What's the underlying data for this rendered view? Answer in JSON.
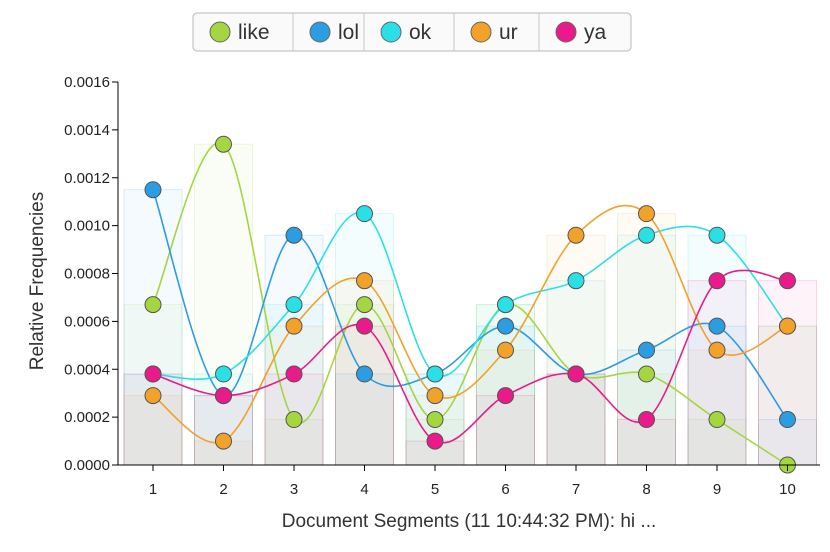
{
  "chart_data": {
    "type": "line",
    "xlabel": "Document Segments (11 10:44:32 PM): hi ...",
    "ylabel": "Relative Frequencies",
    "x": [
      1,
      2,
      3,
      4,
      5,
      6,
      7,
      8,
      9,
      10
    ],
    "ylim": [
      0,
      0.0016
    ],
    "y_ticks": [
      "0.0000",
      "0.0002",
      "0.0004",
      "0.0006",
      "0.0008",
      "0.0010",
      "0.0012",
      "0.0014",
      "0.0016"
    ],
    "legend_position": "top-center",
    "grid": false,
    "series": [
      {
        "name": "like",
        "color": "#a4d63f",
        "values": [
          0.00067,
          0.00134,
          0.00019,
          0.00067,
          0.00019,
          0.00067,
          0.00038,
          0.00038,
          0.00019,
          0.0
        ]
      },
      {
        "name": "lol",
        "color": "#2b9de3",
        "values": [
          0.00115,
          0.00029,
          0.00096,
          0.00038,
          0.00038,
          0.00058,
          0.00038,
          0.00048,
          0.00058,
          0.00019
        ]
      },
      {
        "name": "ok",
        "color": "#29e0e6",
        "values": [
          0.00038,
          0.00038,
          0.00067,
          0.00105,
          0.00038,
          0.00067,
          0.00077,
          0.00096,
          0.00096,
          0.00058
        ]
      },
      {
        "name": "ur",
        "color": "#f2a129",
        "values": [
          0.00029,
          0.0001,
          0.00058,
          0.00077,
          0.00029,
          0.00048,
          0.00096,
          0.00105,
          0.00048,
          0.00058
        ]
      },
      {
        "name": "ya",
        "color": "#ea1a8a",
        "values": [
          0.00038,
          0.00029,
          0.00038,
          0.00058,
          0.0001,
          0.00029,
          0.00038,
          0.00019,
          0.00077,
          0.00077
        ]
      }
    ]
  }
}
